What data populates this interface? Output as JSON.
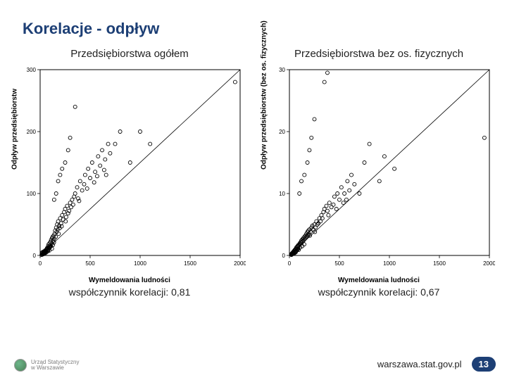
{
  "title": "Korelacje - odpływ",
  "footer": {
    "url": "warszawa.stat.gov.pl",
    "page_number": "13"
  },
  "logo": {
    "line1": "Urząd Statystyczny",
    "line2": "w Warszawie"
  },
  "panels": [
    {
      "title": "Przedsiębiorstwa ogółem",
      "caption": "współczynnik korelacji: 0,81",
      "chart": {
        "type": "scatter",
        "xlabel": "Wymeldowania ludności",
        "ylabel": "Odpływ przedsiębiorstw",
        "xlim": [
          0,
          2000
        ],
        "ylim": [
          0,
          300
        ],
        "xticks": [
          0,
          500,
          1000,
          1500,
          2000
        ],
        "yticks": [
          0,
          100,
          200,
          300
        ],
        "axis_color": "#000000",
        "marker_stroke": "#000000",
        "marker_fill": "none",
        "marker_radius": 2.5,
        "marker_stroke_width": 0.9,
        "ref_line": {
          "from": [
            0,
            0
          ],
          "to": [
            2000,
            300
          ],
          "color": "#000000",
          "width": 0.8
        },
        "tick_fontsize": 8,
        "label_fontsize": 10,
        "background_color": "#ffffff",
        "points": [
          [
            20,
            2
          ],
          [
            25,
            3
          ],
          [
            18,
            4
          ],
          [
            30,
            2
          ],
          [
            22,
            5
          ],
          [
            28,
            3
          ],
          [
            35,
            4
          ],
          [
            15,
            1
          ],
          [
            40,
            5
          ],
          [
            32,
            6
          ],
          [
            26,
            2
          ],
          [
            45,
            7
          ],
          [
            38,
            3
          ],
          [
            50,
            8
          ],
          [
            42,
            4
          ],
          [
            55,
            6
          ],
          [
            48,
            5
          ],
          [
            60,
            9
          ],
          [
            33,
            3
          ],
          [
            58,
            7
          ],
          [
            65,
            10
          ],
          [
            52,
            4
          ],
          [
            70,
            12
          ],
          [
            44,
            6
          ],
          [
            75,
            8
          ],
          [
            68,
            11
          ],
          [
            80,
            15
          ],
          [
            62,
            5
          ],
          [
            85,
            18
          ],
          [
            72,
            9
          ],
          [
            90,
            14
          ],
          [
            78,
            7
          ],
          [
            95,
            20
          ],
          [
            88,
            12
          ],
          [
            100,
            16
          ],
          [
            82,
            10
          ],
          [
            105,
            22
          ],
          [
            92,
            8
          ],
          [
            110,
            25
          ],
          [
            98,
            13
          ],
          [
            115,
            19
          ],
          [
            120,
            28
          ],
          [
            108,
            15
          ],
          [
            125,
            30
          ],
          [
            130,
            24
          ],
          [
            118,
            11
          ],
          [
            135,
            32
          ],
          [
            140,
            27
          ],
          [
            128,
            17
          ],
          [
            145,
            35
          ],
          [
            150,
            40
          ],
          [
            138,
            21
          ],
          [
            160,
            45
          ],
          [
            155,
            30
          ],
          [
            170,
            50
          ],
          [
            165,
            38
          ],
          [
            180,
            55
          ],
          [
            175,
            42
          ],
          [
            190,
            48
          ],
          [
            185,
            35
          ],
          [
            200,
            60
          ],
          [
            210,
            52
          ],
          [
            195,
            44
          ],
          [
            220,
            65
          ],
          [
            230,
            58
          ],
          [
            240,
            70
          ],
          [
            215,
            47
          ],
          [
            250,
            75
          ],
          [
            260,
            62
          ],
          [
            270,
            80
          ],
          [
            255,
            55
          ],
          [
            280,
            68
          ],
          [
            300,
            85
          ],
          [
            290,
            72
          ],
          [
            320,
            90
          ],
          [
            310,
            78
          ],
          [
            340,
            95
          ],
          [
            350,
            100
          ],
          [
            330,
            82
          ],
          [
            370,
            110
          ],
          [
            380,
            92
          ],
          [
            400,
            120
          ],
          [
            420,
            105
          ],
          [
            390,
            88
          ],
          [
            450,
            130
          ],
          [
            440,
            115
          ],
          [
            480,
            140
          ],
          [
            500,
            125
          ],
          [
            470,
            108
          ],
          [
            520,
            150
          ],
          [
            550,
            135
          ],
          [
            540,
            118
          ],
          [
            580,
            160
          ],
          [
            600,
            145
          ],
          [
            570,
            128
          ],
          [
            620,
            170
          ],
          [
            650,
            155
          ],
          [
            640,
            138
          ],
          [
            680,
            180
          ],
          [
            700,
            165
          ],
          [
            250,
            150
          ],
          [
            280,
            170
          ],
          [
            300,
            190
          ],
          [
            200,
            130
          ],
          [
            180,
            120
          ],
          [
            160,
            100
          ],
          [
            140,
            90
          ],
          [
            220,
            140
          ],
          [
            350,
            240
          ],
          [
            660,
            130
          ],
          [
            750,
            180
          ],
          [
            800,
            200
          ],
          [
            900,
            150
          ],
          [
            1000,
            200
          ],
          [
            1100,
            180
          ],
          [
            1950,
            280
          ]
        ]
      }
    },
    {
      "title": "Przedsiębiorstwa bez os. fizycznych",
      "caption": "współczynnik korelacji: 0,67",
      "chart": {
        "type": "scatter",
        "xlabel": "Wymeldowania ludności",
        "ylabel": "Odpływ przedsiębiorstw (bez os. fizycznych)",
        "xlim": [
          0,
          2000
        ],
        "ylim": [
          0,
          30
        ],
        "xticks": [
          0,
          500,
          1000,
          1500,
          2000
        ],
        "yticks": [
          0,
          10,
          20,
          30
        ],
        "axis_color": "#000000",
        "marker_stroke": "#000000",
        "marker_fill": "none",
        "marker_radius": 2.5,
        "marker_stroke_width": 0.9,
        "ref_line": {
          "from": [
            0,
            0
          ],
          "to": [
            2000,
            30
          ],
          "color": "#000000",
          "width": 0.8
        },
        "tick_fontsize": 8,
        "label_fontsize": 10,
        "background_color": "#ffffff",
        "points": [
          [
            18,
            0.2
          ],
          [
            24,
            0.3
          ],
          [
            30,
            0.4
          ],
          [
            20,
            0.1
          ],
          [
            35,
            0.5
          ],
          [
            28,
            0.2
          ],
          [
            40,
            0.6
          ],
          [
            32,
            0.3
          ],
          [
            45,
            0.7
          ],
          [
            38,
            0.4
          ],
          [
            50,
            0.8
          ],
          [
            42,
            0.3
          ],
          [
            55,
            0.9
          ],
          [
            48,
            0.5
          ],
          [
            60,
            1.0
          ],
          [
            52,
            0.4
          ],
          [
            65,
            1.1
          ],
          [
            58,
            0.6
          ],
          [
            70,
            1.3
          ],
          [
            62,
            0.5
          ],
          [
            75,
            1.2
          ],
          [
            68,
            0.7
          ],
          [
            80,
            1.5
          ],
          [
            72,
            0.8
          ],
          [
            85,
            1.4
          ],
          [
            78,
            0.9
          ],
          [
            90,
            1.7
          ],
          [
            82,
            1.0
          ],
          [
            95,
            1.6
          ],
          [
            88,
            1.1
          ],
          [
            100,
            1.8
          ],
          [
            105,
            2.0
          ],
          [
            92,
            0.9
          ],
          [
            110,
            1.9
          ],
          [
            115,
            2.2
          ],
          [
            120,
            2.4
          ],
          [
            108,
            1.3
          ],
          [
            125,
            2.1
          ],
          [
            130,
            2.6
          ],
          [
            135,
            2.3
          ],
          [
            140,
            2.8
          ],
          [
            128,
            1.5
          ],
          [
            145,
            2.5
          ],
          [
            150,
            3.0
          ],
          [
            155,
            2.7
          ],
          [
            160,
            3.2
          ],
          [
            148,
            1.8
          ],
          [
            165,
            2.9
          ],
          [
            170,
            3.5
          ],
          [
            175,
            3.1
          ],
          [
            180,
            3.8
          ],
          [
            185,
            3.3
          ],
          [
            190,
            4.0
          ],
          [
            195,
            3.5
          ],
          [
            200,
            4.2
          ],
          [
            210,
            3.8
          ],
          [
            220,
            4.5
          ],
          [
            205,
            3.2
          ],
          [
            230,
            4.8
          ],
          [
            240,
            4.2
          ],
          [
            250,
            5.0
          ],
          [
            260,
            4.5
          ],
          [
            270,
            5.5
          ],
          [
            255,
            3.8
          ],
          [
            280,
            5.0
          ],
          [
            300,
            6.0
          ],
          [
            290,
            5.2
          ],
          [
            320,
            6.5
          ],
          [
            310,
            5.5
          ],
          [
            340,
            7.0
          ],
          [
            350,
            7.5
          ],
          [
            330,
            6.0
          ],
          [
            370,
            8.0
          ],
          [
            380,
            7.2
          ],
          [
            400,
            8.5
          ],
          [
            420,
            7.8
          ],
          [
            390,
            6.5
          ],
          [
            450,
            9.5
          ],
          [
            440,
            8.2
          ],
          [
            480,
            10.0
          ],
          [
            500,
            9.0
          ],
          [
            470,
            7.5
          ],
          [
            520,
            11.0
          ],
          [
            550,
            10.0
          ],
          [
            540,
            8.5
          ],
          [
            580,
            12.0
          ],
          [
            600,
            10.5
          ],
          [
            570,
            9.0
          ],
          [
            620,
            13.0
          ],
          [
            650,
            11.5
          ],
          [
            150,
            13
          ],
          [
            180,
            15
          ],
          [
            200,
            17
          ],
          [
            220,
            19
          ],
          [
            100,
            10
          ],
          [
            120,
            12
          ],
          [
            250,
            22
          ],
          [
            350,
            28
          ],
          [
            380,
            29.5
          ],
          [
            700,
            10
          ],
          [
            750,
            15
          ],
          [
            800,
            18
          ],
          [
            900,
            12
          ],
          [
            950,
            16
          ],
          [
            1050,
            14
          ],
          [
            1950,
            19
          ]
        ]
      }
    }
  ]
}
